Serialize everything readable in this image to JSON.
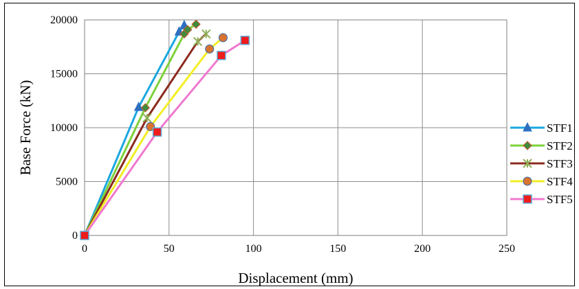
{
  "chart_data": {
    "type": "line",
    "xlabel": "Displacement (mm)",
    "ylabel": "Base Force (kN)",
    "xlim": [
      0,
      250
    ],
    "ylim": [
      0,
      20000
    ],
    "xticks": [
      "0",
      "50",
      "100",
      "150",
      "200",
      "250"
    ],
    "yticks": [
      "0",
      "5000",
      "10000",
      "15000",
      "20000"
    ],
    "grid": true,
    "legend_position": "right",
    "series": [
      {
        "name": "STF1",
        "color": "#1aa7e0",
        "marker": "triangle",
        "marker_color": "#2e6fc0",
        "points": [
          [
            0,
            0
          ],
          [
            32,
            11900
          ],
          [
            56,
            18900
          ],
          [
            59,
            19500
          ]
        ]
      },
      {
        "name": "STF2",
        "color": "#7dd13a",
        "marker": "diamond",
        "marker_color": "#3f8c3f",
        "points": [
          [
            0,
            0
          ],
          [
            36,
            11850
          ],
          [
            59,
            18700
          ],
          [
            61,
            19100
          ],
          [
            66,
            19600
          ]
        ]
      },
      {
        "name": "STF3",
        "color": "#8b2a1e",
        "marker": "asterisk",
        "marker_color": "#8fae54",
        "points": [
          [
            0,
            0
          ],
          [
            37,
            10900
          ],
          [
            67,
            18000
          ],
          [
            72,
            18700
          ]
        ]
      },
      {
        "name": "STF4",
        "color": "#f2ee23",
        "marker": "circle",
        "marker_color": "#d9742f",
        "points": [
          [
            0,
            0
          ],
          [
            39,
            10100
          ],
          [
            74,
            17300
          ],
          [
            82,
            18350
          ]
        ]
      },
      {
        "name": "STF5",
        "color": "#ef78cf",
        "marker": "square",
        "marker_color": "#ee1c1c",
        "points": [
          [
            0,
            0
          ],
          [
            43,
            9600
          ],
          [
            81,
            16700
          ],
          [
            95,
            18100
          ]
        ]
      }
    ]
  }
}
